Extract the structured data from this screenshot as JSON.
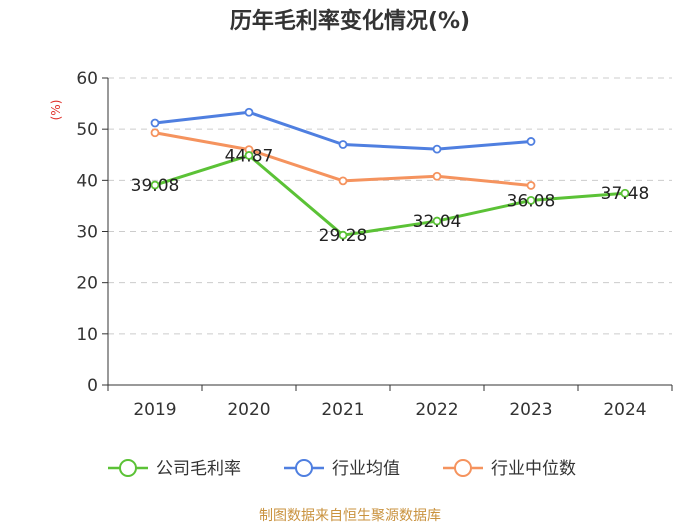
{
  "chart_data": {
    "type": "line",
    "title": "历年毛利率变化情况(%)",
    "ylabel": "(%)",
    "xlabel": "",
    "categories": [
      "2019",
      "2020",
      "2021",
      "2022",
      "2023",
      "2024"
    ],
    "ylim": [
      0,
      60
    ],
    "yticks": [
      0,
      10,
      20,
      30,
      40,
      50,
      60
    ],
    "grid": true,
    "legend_position": "bottom",
    "series": [
      {
        "name": "公司毛利率",
        "color": "#5bc236",
        "values": [
          39.08,
          44.87,
          29.28,
          32.04,
          36.08,
          37.48
        ],
        "labels": [
          "39.08",
          "44.87",
          "29.28",
          "32.04",
          "36.08",
          "37.48"
        ]
      },
      {
        "name": "行业均值",
        "color": "#4f7fe0",
        "values": [
          51.2,
          53.3,
          47.0,
          46.1,
          47.6,
          null
        ]
      },
      {
        "name": "行业中位数",
        "color": "#f5935e",
        "values": [
          49.3,
          46.0,
          39.9,
          40.8,
          39.0,
          null
        ]
      }
    ],
    "source": "制图数据来自恒生聚源数据库"
  }
}
